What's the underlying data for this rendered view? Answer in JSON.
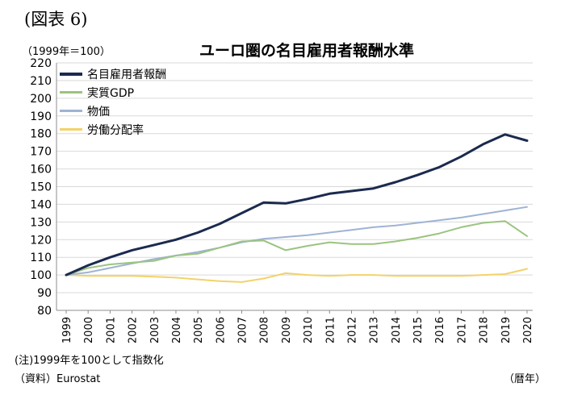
{
  "header": {
    "figure_label": "(図表 6)",
    "unit": "（1999年＝100）"
  },
  "footer": {
    "note": "(注)1999年を100として指数化",
    "source": "（資料）Eurostat",
    "x_unit": "（暦年）"
  },
  "colors": {
    "wages": "#1b2a4e",
    "gdp": "#9bc47f",
    "prices": "#9fb3d4",
    "labor_share": "#f2d36a"
  },
  "chart_data": {
    "type": "line",
    "title": "ユーロ圏の名目雇用者報酬水準",
    "xlabel": "",
    "ylabel": "",
    "ylim": [
      80,
      220
    ],
    "yticks": [
      80,
      90,
      100,
      110,
      120,
      130,
      140,
      150,
      160,
      170,
      180,
      190,
      200,
      210,
      220
    ],
    "grid": true,
    "legend_position": "top-left",
    "x": [
      "1999",
      "2000",
      "2001",
      "2002",
      "2003",
      "2004",
      "2005",
      "2006",
      "2007",
      "2008",
      "2009",
      "2010",
      "2011",
      "2012",
      "2013",
      "2014",
      "2015",
      "2016",
      "2017",
      "2018",
      "2019",
      "2020"
    ],
    "series": [
      {
        "name": "名目雇用者報酬",
        "color": "#1b2a4e",
        "width": 3,
        "values": [
          100,
          105.5,
          110,
          114,
          117,
          120,
          124,
          129,
          135,
          141,
          140.5,
          143,
          146,
          147.5,
          149,
          152.5,
          156.5,
          161,
          167,
          174,
          179.5,
          176
        ]
      },
      {
        "name": "実質GDP",
        "color": "#9bc47f",
        "width": 2,
        "values": [
          100,
          104,
          106,
          107,
          108,
          111,
          112,
          115.5,
          119,
          119.5,
          114,
          116.5,
          118.5,
          117.5,
          117.5,
          119,
          121,
          123.5,
          127,
          129.5,
          130.5,
          122
        ]
      },
      {
        "name": "物価",
        "color": "#9fb3d4",
        "width": 2,
        "values": [
          100,
          101.5,
          104,
          106.5,
          109,
          111,
          113,
          115.5,
          118.5,
          120.5,
          121.5,
          122.5,
          124,
          125.5,
          127,
          128,
          129.5,
          131,
          132.5,
          134.5,
          136.5,
          138.5
        ]
      },
      {
        "name": "労働分配率",
        "color": "#f2d36a",
        "width": 2,
        "values": [
          100,
          99.5,
          99.5,
          99.5,
          99,
          98.5,
          97.5,
          96.5,
          96,
          98,
          101,
          100,
          99.5,
          100,
          100,
          99.5,
          99.5,
          99.5,
          99.5,
          100,
          100.5,
          103.5
        ]
      }
    ]
  }
}
